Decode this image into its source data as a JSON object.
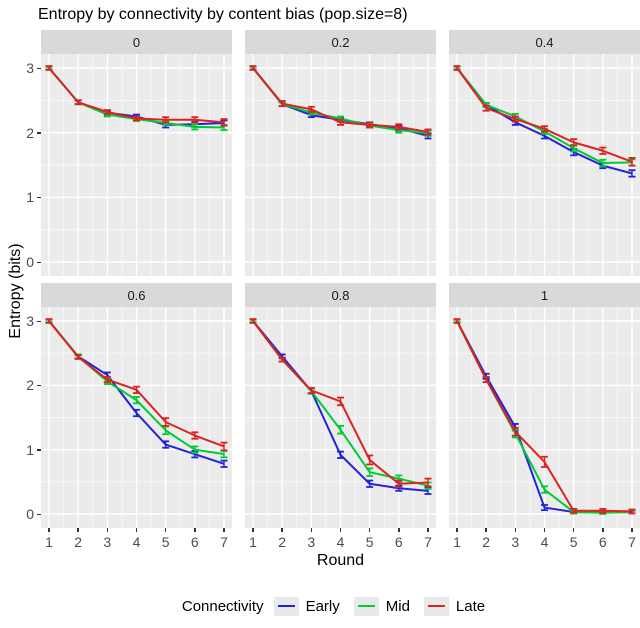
{
  "chart_data": {
    "type": "line",
    "title": "Entropy by connectivity by content bias (pop.size=8)",
    "xlabel": "Round",
    "ylabel": "Entropy (bits)",
    "facet_variable": "content bias",
    "x": [
      1,
      2,
      3,
      4,
      5,
      6,
      7
    ],
    "x_ticks": [
      "1",
      "2",
      "3",
      "4",
      "5",
      "6",
      "7"
    ],
    "y_ticks": [
      "3",
      "2",
      "1",
      "0"
    ],
    "y_tick_values": [
      3,
      2,
      1,
      0
    ],
    "ylim": [
      0,
      3
    ],
    "grid": "on",
    "error_bars": true,
    "legend": {
      "title": "Connectivity",
      "position": "bottom",
      "entries": [
        "Early",
        "Mid",
        "Late"
      ]
    },
    "colors": {
      "Early": "#2222dd",
      "Mid": "#00cc33",
      "Late": "#dd2222",
      "panel_bg": "#ebebeb",
      "strip_bg": "#d9d9d9",
      "grid_major": "#ffffff",
      "grid_minor": "#f7f7f7",
      "tick_text": "#4d4d4d"
    },
    "facets": [
      {
        "label": "0",
        "series": [
          {
            "name": "Early",
            "values": [
              3.0,
              2.47,
              2.31,
              2.25,
              2.12,
              2.13,
              2.15
            ],
            "err": [
              0.02,
              0.03,
              0.03,
              0.03,
              0.04,
              0.04,
              0.04
            ]
          },
          {
            "name": "Mid",
            "values": [
              3.0,
              2.47,
              2.28,
              2.21,
              2.15,
              2.09,
              2.08
            ],
            "err": [
              0.02,
              0.03,
              0.03,
              0.03,
              0.03,
              0.04,
              0.04
            ]
          },
          {
            "name": "Late",
            "values": [
              3.0,
              2.47,
              2.32,
              2.22,
              2.2,
              2.2,
              2.16
            ],
            "err": [
              0.03,
              0.03,
              0.03,
              0.03,
              0.04,
              0.04,
              0.05
            ]
          }
        ]
      },
      {
        "label": "0.2",
        "series": [
          {
            "name": "Early",
            "values": [
              3.0,
              2.44,
              2.27,
              2.2,
              2.13,
              2.07,
              1.95
            ],
            "err": [
              0.02,
              0.03,
              0.03,
              0.03,
              0.03,
              0.04,
              0.04
            ]
          },
          {
            "name": "Mid",
            "values": [
              3.0,
              2.44,
              2.31,
              2.22,
              2.11,
              2.04,
              1.99
            ],
            "err": [
              0.02,
              0.03,
              0.03,
              0.03,
              0.03,
              0.04,
              0.04
            ]
          },
          {
            "name": "Late",
            "values": [
              3.0,
              2.45,
              2.36,
              2.16,
              2.12,
              2.09,
              2.01
            ],
            "err": [
              0.03,
              0.04,
              0.04,
              0.04,
              0.04,
              0.04,
              0.04
            ]
          }
        ]
      },
      {
        "label": "0.4",
        "series": [
          {
            "name": "Early",
            "values": [
              3.0,
              2.43,
              2.16,
              1.95,
              1.7,
              1.49,
              1.37
            ],
            "err": [
              0.02,
              0.03,
              0.04,
              0.04,
              0.05,
              0.04,
              0.05
            ]
          },
          {
            "name": "Mid",
            "values": [
              3.0,
              2.43,
              2.25,
              2.02,
              1.76,
              1.53,
              1.54
            ],
            "err": [
              0.02,
              0.03,
              0.04,
              0.04,
              0.05,
              0.05,
              0.05
            ]
          },
          {
            "name": "Late",
            "values": [
              3.0,
              2.38,
              2.21,
              2.06,
              1.85,
              1.72,
              1.55
            ],
            "err": [
              0.03,
              0.04,
              0.04,
              0.04,
              0.05,
              0.05,
              0.06
            ]
          }
        ]
      },
      {
        "label": "0.6",
        "series": [
          {
            "name": "Early",
            "values": [
              3.0,
              2.45,
              2.16,
              1.57,
              1.08,
              0.93,
              0.78
            ],
            "err": [
              0.02,
              0.03,
              0.04,
              0.05,
              0.05,
              0.05,
              0.05
            ]
          },
          {
            "name": "Mid",
            "values": [
              3.0,
              2.45,
              2.06,
              1.77,
              1.3,
              1.0,
              0.93
            ],
            "err": [
              0.02,
              0.03,
              0.04,
              0.05,
              0.06,
              0.05,
              0.05
            ]
          },
          {
            "name": "Late",
            "values": [
              3.0,
              2.44,
              2.09,
              1.93,
              1.43,
              1.22,
              1.05
            ],
            "err": [
              0.03,
              0.03,
              0.04,
              0.05,
              0.06,
              0.05,
              0.06
            ]
          }
        ]
      },
      {
        "label": "0.8",
        "series": [
          {
            "name": "Early",
            "values": [
              3.0,
              2.45,
              1.91,
              0.92,
              0.47,
              0.4,
              0.36
            ],
            "err": [
              0.02,
              0.03,
              0.04,
              0.05,
              0.05,
              0.04,
              0.05
            ]
          },
          {
            "name": "Mid",
            "values": [
              3.0,
              2.4,
              1.91,
              1.31,
              0.65,
              0.55,
              0.44
            ],
            "err": [
              0.02,
              0.03,
              0.04,
              0.06,
              0.06,
              0.05,
              0.05
            ]
          },
          {
            "name": "Late",
            "values": [
              3.0,
              2.4,
              1.92,
              1.75,
              0.84,
              0.47,
              0.49
            ],
            "err": [
              0.03,
              0.03,
              0.04,
              0.06,
              0.07,
              0.05,
              0.06
            ]
          }
        ]
      },
      {
        "label": "1",
        "series": [
          {
            "name": "Early",
            "values": [
              3.0,
              2.14,
              1.35,
              0.1,
              0.03,
              0.03,
              0.03
            ],
            "err": [
              0.02,
              0.04,
              0.05,
              0.04,
              0.02,
              0.02,
              0.02
            ]
          },
          {
            "name": "Mid",
            "values": [
              3.0,
              2.09,
              1.25,
              0.38,
              0.03,
              0.02,
              0.03
            ],
            "err": [
              0.02,
              0.04,
              0.06,
              0.05,
              0.02,
              0.02,
              0.02
            ]
          },
          {
            "name": "Late",
            "values": [
              3.0,
              2.09,
              1.28,
              0.81,
              0.05,
              0.05,
              0.04
            ],
            "err": [
              0.03,
              0.04,
              0.06,
              0.08,
              0.03,
              0.03,
              0.03
            ]
          }
        ]
      }
    ]
  }
}
